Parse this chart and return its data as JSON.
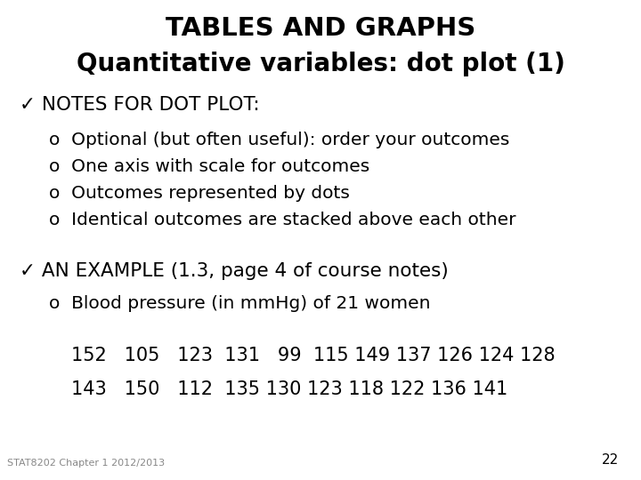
{
  "title_line1": "TABLES AND GRAPHS",
  "title_line2": "Quantitative variables: dot plot (1)",
  "background_color": "#ffffff",
  "text_color": "#000000",
  "section1_header": "✓ NOTES FOR DOT PLOT:",
  "section1_bullets": [
    "o  Optional (but often useful): order your outcomes",
    "o  One axis with scale for outcomes",
    "o  Outcomes represented by dots",
    "o  Identical outcomes are stacked above each other"
  ],
  "section2_header": "✓ AN EXAMPLE (1.3, page 4 of course notes)",
  "section2_bullet": "o  Blood pressure (in mmHg) of 21 women",
  "data_line1": "152   105   123  131   99  115 149 137 126 124 128",
  "data_line2": "143   150   112  135 130 123 118 122 136 141",
  "footer": "STAT8202 Chapter 1 2012/2013",
  "page_number": "22",
  "title_fontsize": 21,
  "subtitle_fontsize": 20,
  "section_header_fontsize": 15.5,
  "bullet_fontsize": 14.5,
  "data_fontsize": 15,
  "footer_fontsize": 8,
  "page_fontsize": 11
}
